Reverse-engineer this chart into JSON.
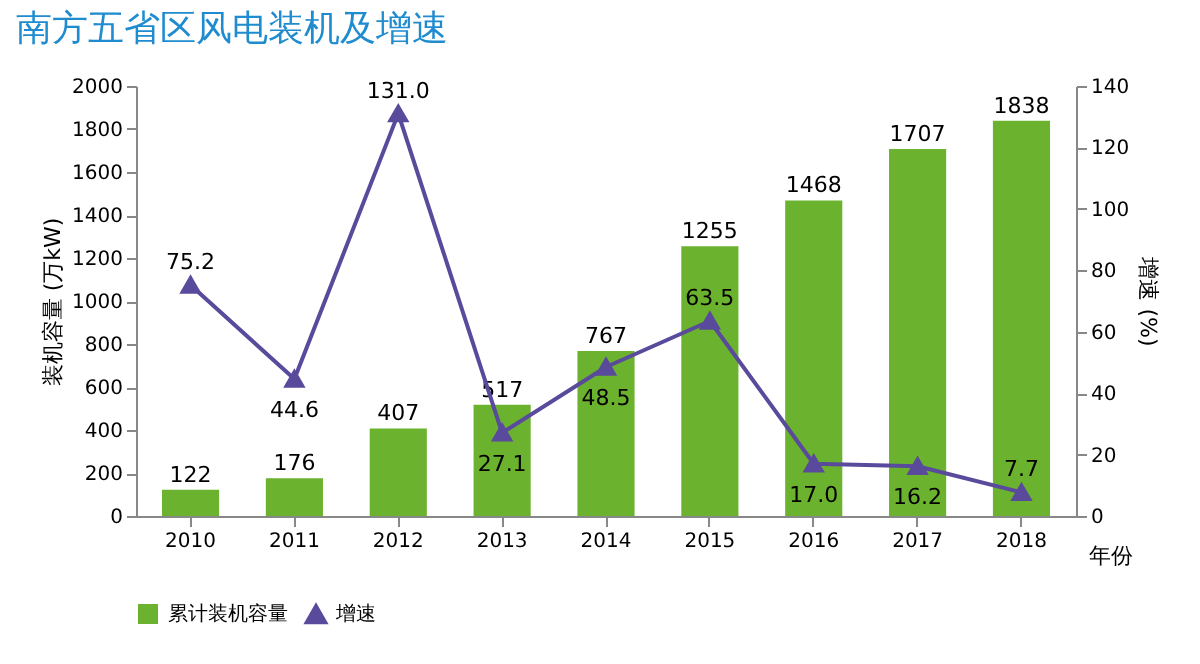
{
  "chart_data": {
    "type": "bar",
    "title": "南方五省区风电装机及增速",
    "xlabel": "年份",
    "ylabel": "装机容量 (万kW)",
    "y2label": "增速 (%)",
    "categories": [
      "2010",
      "2011",
      "2012",
      "2013",
      "2014",
      "2015",
      "2016",
      "2017",
      "2018"
    ],
    "series": [
      {
        "name": "累计装机容量",
        "color": "#6bb22e",
        "values": [
          122,
          176,
          407,
          517,
          767,
          1255,
          1468,
          1707,
          1838
        ]
      },
      {
        "name": "增速",
        "type": "line",
        "axis": "y2",
        "color": "#5a4a9c",
        "marker": "triangle",
        "values": [
          75.2,
          44.6,
          131.0,
          27.1,
          48.5,
          63.5,
          17.0,
          16.2,
          7.7
        ],
        "value_labels": [
          "75.2",
          "44.6",
          "131.0",
          "27.1",
          "48.5",
          "63.5",
          "17.0",
          "16.2",
          "7.7"
        ]
      }
    ],
    "ylim": [
      0,
      2000
    ],
    "yticks": [
      0,
      200,
      400,
      600,
      800,
      1000,
      1200,
      1400,
      1600,
      1800,
      2000
    ],
    "y2lim": [
      0,
      140
    ],
    "y2ticks": [
      0,
      20,
      40,
      60,
      80,
      100,
      120,
      140
    ],
    "data_labels": true,
    "legend": "bottom",
    "grid": false
  }
}
